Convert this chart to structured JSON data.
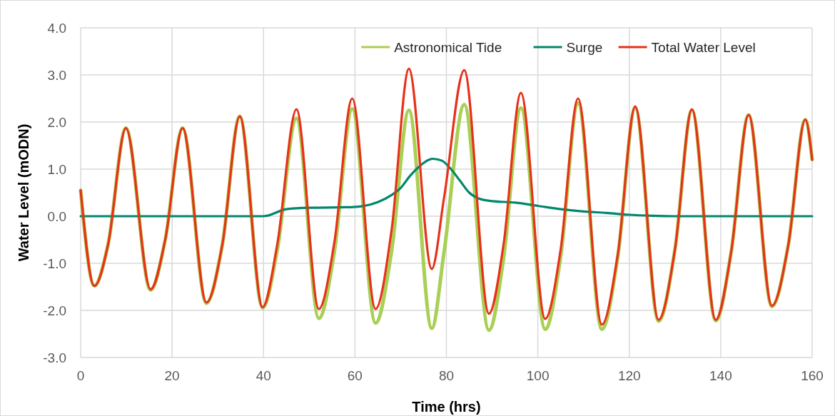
{
  "chart_data": {
    "type": "line",
    "xlabel": "Time (hrs)",
    "ylabel": "Water Level (mODN)",
    "legend": "top right",
    "grid": true,
    "line_style": "solid",
    "marker": "none",
    "x": [
      0,
      3,
      6,
      9.9,
      15.3,
      18.5,
      22.3,
      27.5,
      31,
      34.8,
      39.8,
      43,
      47.2,
      52.1,
      55.5,
      59.4,
      64.5,
      68,
      71.8,
      76.8,
      79.5,
      83.9,
      89.3,
      92.5,
      96.3,
      101.6,
      105,
      108.8,
      114,
      117.5,
      121.3,
      126.4,
      130,
      133.7,
      138.9,
      142.3,
      146.1,
      151.2,
      154.8,
      158.5,
      160
    ],
    "xlim": [
      0,
      160
    ],
    "xticks": [
      0,
      20,
      40,
      60,
      80,
      100,
      120,
      140,
      160
    ],
    "ylim": [
      -3,
      4
    ],
    "yticks": [
      {
        "value": -3,
        "label": "-3.0"
      },
      {
        "value": -2,
        "label": "-2.0"
      },
      {
        "value": -1,
        "label": "-1.0"
      },
      {
        "value": 0,
        "label": "0.0"
      },
      {
        "value": 1,
        "label": "1.0"
      },
      {
        "value": 2,
        "label": "2.0"
      },
      {
        "value": 3,
        "label": "3.0"
      },
      {
        "value": 4,
        "label": "4.0"
      }
    ],
    "series": [
      {
        "name": "Astronomical Tide",
        "color": "#a9cf54",
        "values": [
          0.55,
          -1.48,
          -0.6,
          1.87,
          -1.57,
          -0.5,
          1.87,
          -1.85,
          -0.6,
          2.12,
          -1.95,
          -0.72,
          2.08,
          -2.17,
          -0.75,
          2.28,
          -2.27,
          -0.75,
          2.25,
          -2.38,
          -0.75,
          2.37,
          -2.42,
          -0.9,
          2.3,
          -2.4,
          -0.85,
          2.4,
          -2.4,
          -0.85,
          2.3,
          -2.23,
          -0.7,
          2.25,
          -2.22,
          -0.75,
          2.15,
          -1.92,
          -0.6,
          2.05,
          1.2
        ]
      },
      {
        "name": "Surge",
        "color": "#00876c",
        "x": [
          0,
          40,
          45,
          50,
          58,
          62,
          65,
          68,
          70,
          72,
          74,
          77,
          79,
          81,
          83,
          85,
          87,
          90,
          95,
          100,
          105,
          110,
          115,
          120,
          125,
          130,
          160
        ],
        "values": [
          0,
          0,
          0.15,
          0.18,
          0.19,
          0.22,
          0.3,
          0.45,
          0.6,
          0.85,
          1.05,
          1.22,
          1.18,
          1.0,
          0.75,
          0.5,
          0.38,
          0.32,
          0.29,
          0.22,
          0.15,
          0.1,
          0.07,
          0.03,
          0.01,
          0,
          0
        ]
      },
      {
        "name": "Total Water Level",
        "color": "#e8311a",
        "values": [
          0.55,
          -1.48,
          -0.6,
          1.87,
          -1.55,
          -0.5,
          1.87,
          -1.83,
          -0.6,
          2.12,
          -1.93,
          -0.6,
          2.27,
          -1.97,
          -0.55,
          2.5,
          -1.97,
          -0.3,
          3.13,
          -1.12,
          0.4,
          3.1,
          -2.07,
          -0.6,
          2.62,
          -2.18,
          -0.7,
          2.5,
          -2.3,
          -0.8,
          2.33,
          -2.2,
          -0.7,
          2.27,
          -2.2,
          -0.75,
          2.15,
          -1.9,
          -0.6,
          2.05,
          1.2
        ]
      }
    ]
  }
}
